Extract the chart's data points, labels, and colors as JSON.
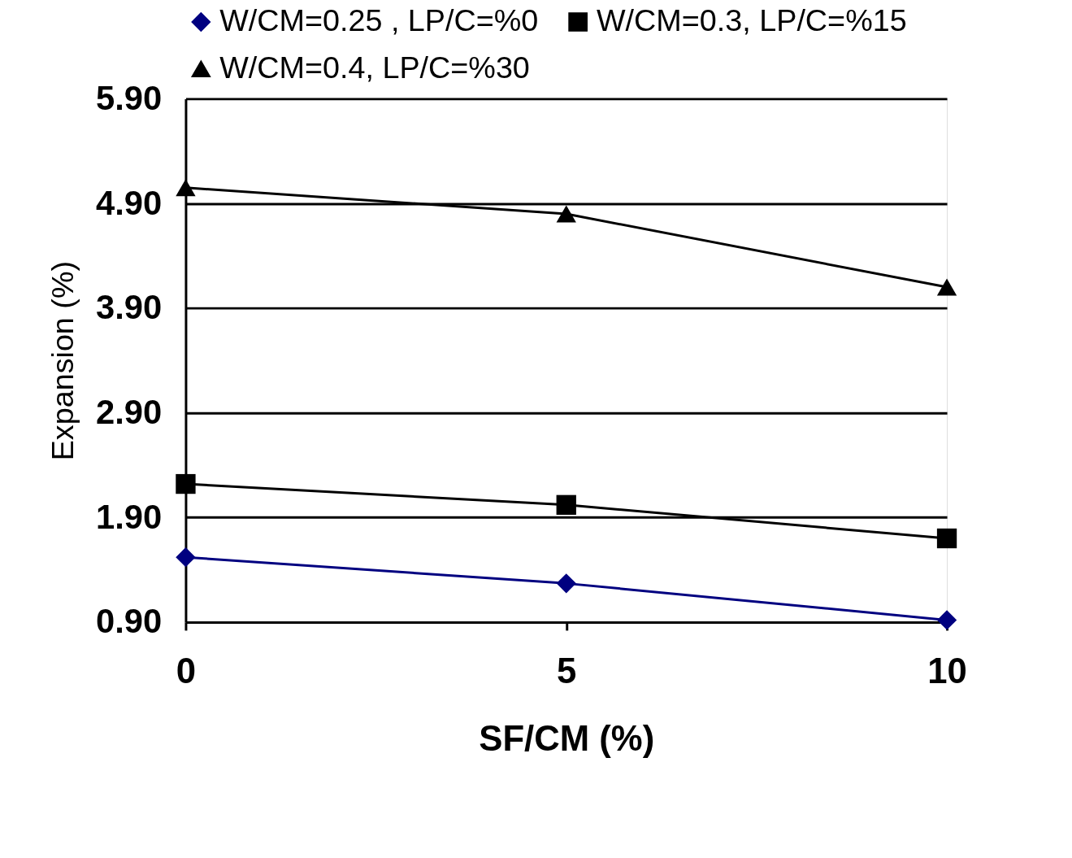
{
  "chart_data": {
    "type": "line",
    "xlabel": "SF/CM (%)",
    "ylabel": "Expansion (%)",
    "x": [
      0,
      5,
      10
    ],
    "series": [
      {
        "name": "W/CM=0.25 , LP/C=%0",
        "color": "#000080",
        "marker": "diamond",
        "values": [
          1.52,
          1.27,
          0.92
        ]
      },
      {
        "name": "W/CM=0.3, LP/C=%15",
        "color": "#000000",
        "marker": "square",
        "values": [
          2.22,
          2.02,
          1.7
        ]
      },
      {
        "name": "W/CM=0.4, LP/C=%30",
        "color": "#000000",
        "marker": "triangle",
        "values": [
          5.05,
          4.8,
          4.1
        ]
      }
    ],
    "xlim": [
      0,
      10
    ],
    "xticks": [
      0,
      5,
      10
    ],
    "ylim": [
      0.9,
      5.9
    ],
    "yticks": [
      {
        "value": 0.9,
        "label": "0.90"
      },
      {
        "value": 1.9,
        "label": "1.90"
      },
      {
        "value": 2.9,
        "label": "2.90"
      },
      {
        "value": 3.9,
        "label": "3.90"
      },
      {
        "value": 4.9,
        "label": "4.90"
      },
      {
        "value": 5.9,
        "label": "5.90"
      }
    ],
    "grid": "y",
    "legend": "top",
    "line_style": "solid"
  }
}
